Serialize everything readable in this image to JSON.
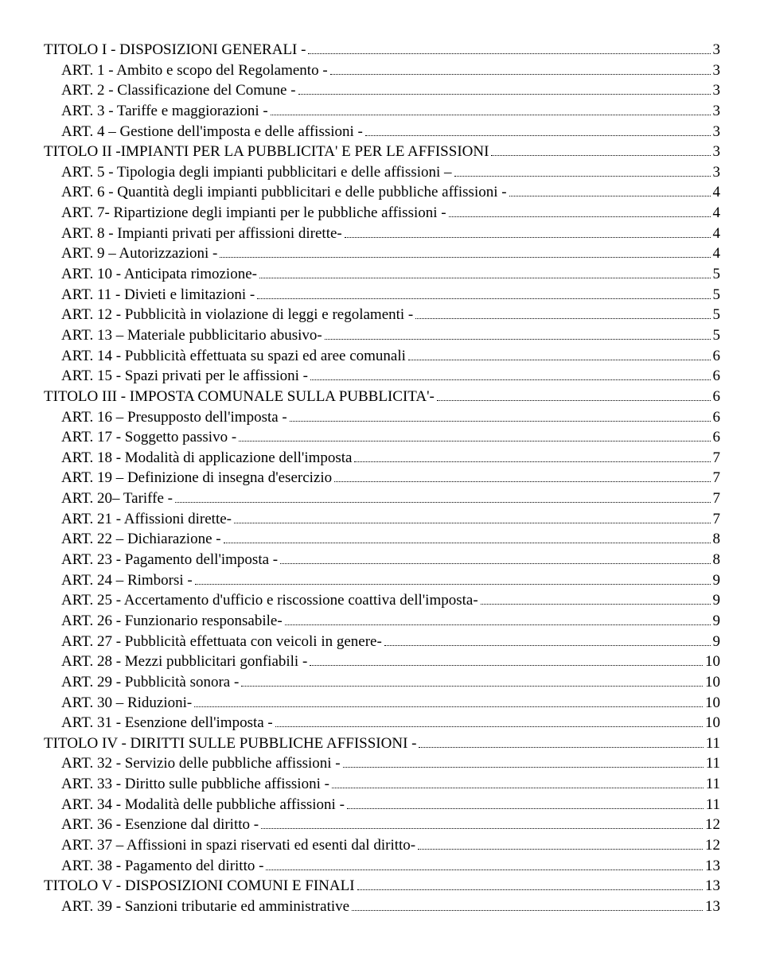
{
  "entries": [
    {
      "text": "TITOLO I - DISPOSIZIONI GENERALI -",
      "page": "3",
      "indent": false
    },
    {
      "text": "ART. 1 - Ambito e scopo del Regolamento -",
      "page": "3",
      "indent": true
    },
    {
      "text": "ART. 2 - Classificazione del Comune -",
      "page": "3",
      "indent": true
    },
    {
      "text": "ART. 3 - Tariffe e maggiorazioni -",
      "page": "3",
      "indent": true
    },
    {
      "text": "ART. 4 – Gestione dell'imposta e delle affissioni -",
      "page": "3",
      "indent": true
    },
    {
      "text": "TITOLO II -IMPIANTI PER LA PUBBLICITA' E PER LE AFFISSIONI",
      "page": "3",
      "indent": false
    },
    {
      "text": "ART. 5 - Tipologia degli impianti pubblicitari e delle affissioni –",
      "page": "3",
      "indent": true
    },
    {
      "text": "ART. 6 - Quantità degli impianti pubblicitari e delle pubbliche affissioni -",
      "page": "4",
      "indent": true
    },
    {
      "text": "ART. 7- Ripartizione degli impianti per le pubbliche affissioni -",
      "page": "4",
      "indent": true
    },
    {
      "text": "ART. 8 - Impianti privati per affissioni dirette-",
      "page": "4",
      "indent": true
    },
    {
      "text": "ART. 9 – Autorizzazioni -",
      "page": "4",
      "indent": true
    },
    {
      "text": "ART. 10 - Anticipata rimozione-",
      "page": "5",
      "indent": true
    },
    {
      "text": "ART. 11 - Divieti e limitazioni -",
      "page": "5",
      "indent": true
    },
    {
      "text": "ART. 12 - Pubblicità in violazione di leggi e regolamenti -",
      "page": "5",
      "indent": true
    },
    {
      "text": "ART. 13 – Materiale pubblicitario abusivo-",
      "page": "5",
      "indent": true
    },
    {
      "text": "ART. 14 - Pubblicità effettuata su spazi ed aree comunali",
      "page": "6",
      "indent": true
    },
    {
      "text": "ART. 15 - Spazi privati per le affissioni -",
      "page": "6",
      "indent": true
    },
    {
      "text": "TITOLO III - IMPOSTA COMUNALE SULLA PUBBLICITA'-",
      "page": "6",
      "indent": false
    },
    {
      "text": "ART. 16 – Presupposto dell'imposta -",
      "page": "6",
      "indent": true
    },
    {
      "text": "ART. 17 - Soggetto passivo -",
      "page": "6",
      "indent": true
    },
    {
      "text": "ART. 18 - Modalità di applicazione dell'imposta",
      "page": "7",
      "indent": true
    },
    {
      "text": "ART. 19 – Definizione di insegna d'esercizio",
      "page": "7",
      "indent": true
    },
    {
      "text": "ART. 20– Tariffe -",
      "page": "7",
      "indent": true
    },
    {
      "text": "ART. 21 - Affissioni dirette-",
      "page": "7",
      "indent": true
    },
    {
      "text": "ART. 22 – Dichiarazione -",
      "page": "8",
      "indent": true
    },
    {
      "text": "ART. 23 - Pagamento dell'imposta -",
      "page": "8",
      "indent": true
    },
    {
      "text": "ART. 24 – Rimborsi -",
      "page": "9",
      "indent": true
    },
    {
      "text": "ART. 25 - Accertamento d'ufficio e riscossione coattiva dell'imposta-",
      "page": "9",
      "indent": true
    },
    {
      "text": "ART. 26 - Funzionario responsabile-",
      "page": "9",
      "indent": true
    },
    {
      "text": "ART. 27 - Pubblicità effettuata con veicoli in genere-",
      "page": "9",
      "indent": true
    },
    {
      "text": "ART. 28 - Mezzi pubblicitari gonfiabili -",
      "page": "10",
      "indent": true
    },
    {
      "text": "ART. 29 - Pubblicità sonora -",
      "page": "10",
      "indent": true
    },
    {
      "text": "ART. 30 – Riduzioni-",
      "page": "10",
      "indent": true
    },
    {
      "text": "ART. 31 - Esenzione dell'imposta -",
      "page": "10",
      "indent": true
    },
    {
      "text": "TITOLO IV  - DIRITTI SULLE PUBBLICHE AFFISSIONI -",
      "page": "11",
      "indent": false
    },
    {
      "text": "ART. 32 - Servizio delle pubbliche affissioni -",
      "page": "11",
      "indent": true
    },
    {
      "text": "ART. 33 - Diritto sulle pubbliche affissioni -",
      "page": "11",
      "indent": true
    },
    {
      "text": "ART. 34 - Modalità delle pubbliche affissioni -",
      "page": "11",
      "indent": true
    },
    {
      "text": "ART. 36 - Esenzione dal diritto -",
      "page": "12",
      "indent": true
    },
    {
      "text": "ART. 37 – Affissioni in spazi riservati ed esenti dal diritto-",
      "page": "12",
      "indent": true
    },
    {
      "text": "ART. 38 - Pagamento del diritto -",
      "page": "13",
      "indent": true
    },
    {
      "text": "TITOLO V - DISPOSIZIONI COMUNI E FINALI",
      "page": "13",
      "indent": false
    },
    {
      "text": "ART. 39 - Sanzioni tributarie ed amministrative",
      "page": "13",
      "indent": true
    }
  ]
}
